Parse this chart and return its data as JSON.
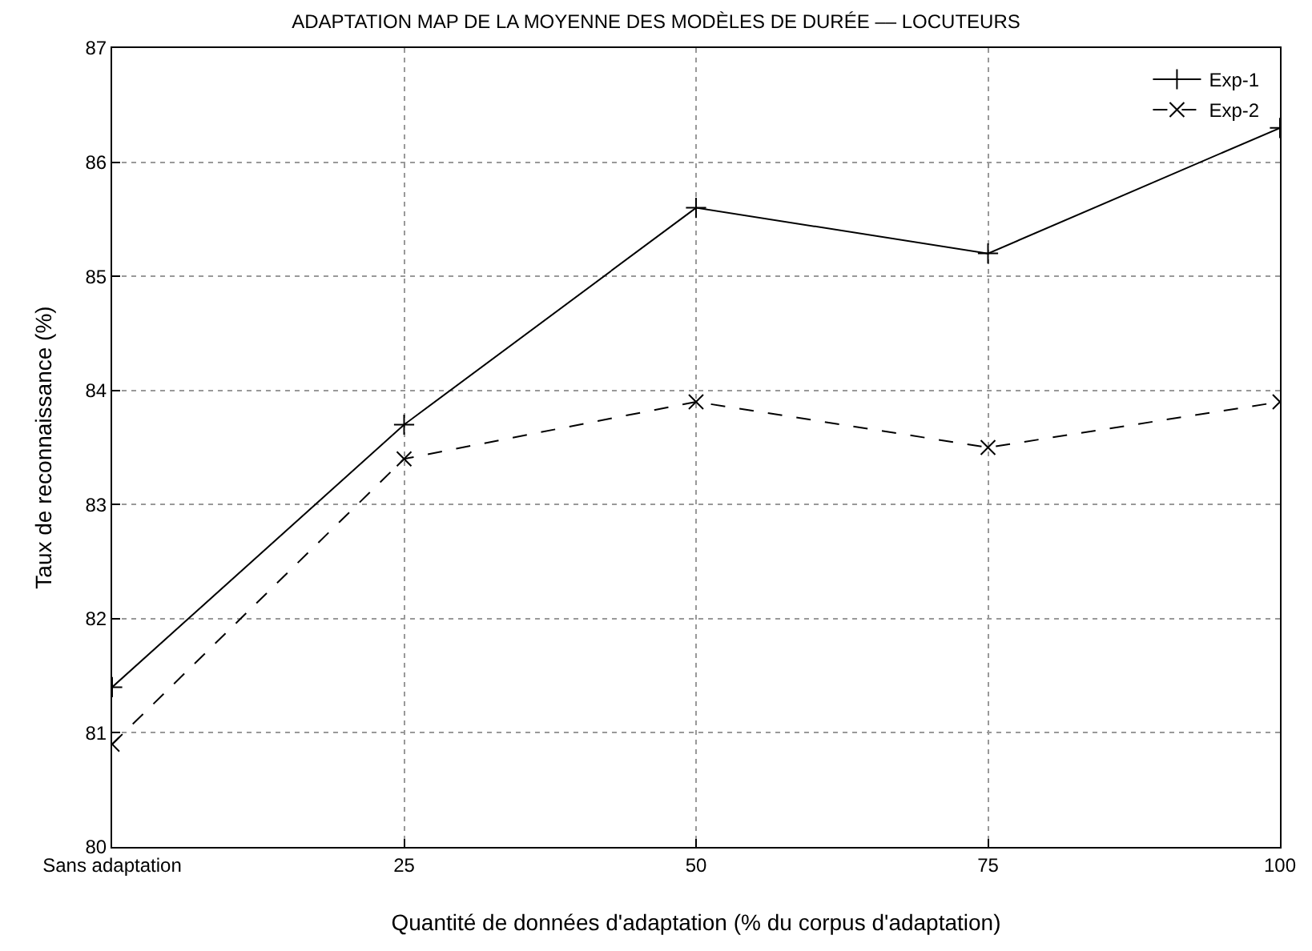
{
  "chart_data": {
    "type": "line",
    "title": "ADAPTATION MAP DE LA MOYENNE DES MODÈLES DE DURÉE –– LOCUTEURS",
    "xlabel": "Quantité de données d'adaptation (% du corpus d'adaptation)",
    "ylabel": "Taux de reconnaissance (%)",
    "categories": [
      "Sans adaptation",
      "25",
      "50",
      "75",
      "100"
    ],
    "series": [
      {
        "name": "Exp-1",
        "color": "#000000",
        "values": [
          81.4,
          83.7,
          85.6,
          85.2,
          86.3
        ],
        "marker": "cross",
        "line_style": "solid"
      },
      {
        "name": "Exp-2",
        "color": "#000000",
        "values": [
          80.9,
          83.4,
          83.9,
          83.5,
          83.9
        ],
        "marker": "x",
        "line_style": "dashed"
      }
    ],
    "ylim": [
      80,
      87
    ],
    "yticks": [
      80,
      81,
      82,
      83,
      84,
      85,
      86,
      87
    ],
    "grid": true,
    "legend": "top right"
  }
}
